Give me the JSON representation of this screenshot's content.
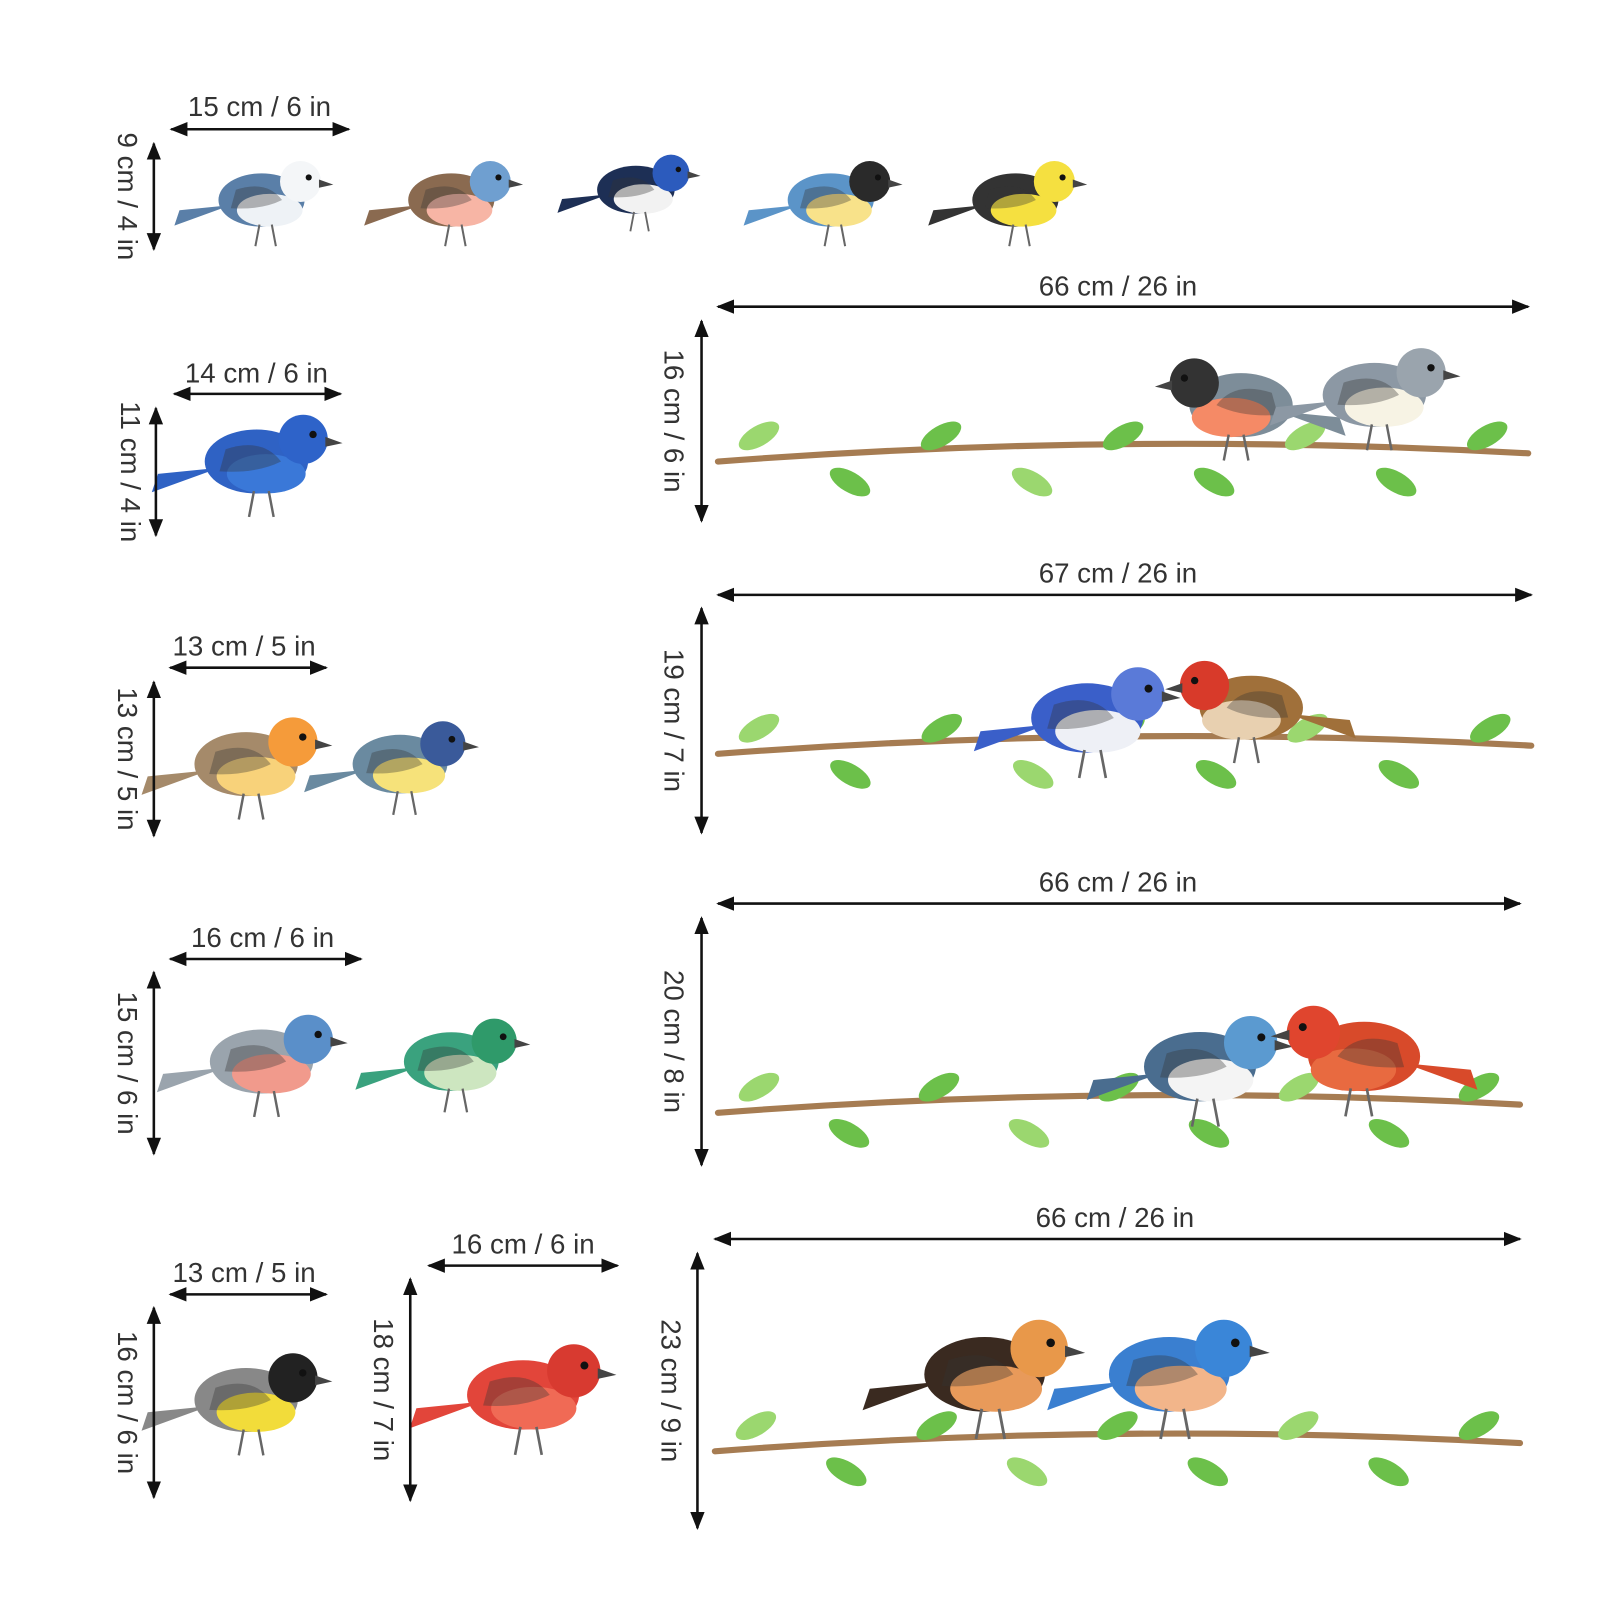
{
  "decals": [
    {
      "width": "15 cm / 6 in",
      "height": "9 cm / 4 in"
    },
    {
      "width": "14 cm / 6 in",
      "height": "11 cm / 4 in"
    },
    {
      "width": "13 cm / 5 in",
      "height": "13 cm / 5 in"
    },
    {
      "width": "16 cm / 6 in",
      "height": "15 cm / 6 in"
    },
    {
      "width": "13 cm / 5 in",
      "height": "16 cm / 6 in"
    },
    {
      "width": "16 cm / 6 in",
      "height": "18 cm / 7 in"
    },
    {
      "width": "66 cm / 26 in",
      "height": "16 cm / 6 in"
    },
    {
      "width": "67 cm / 26 in",
      "height": "19 cm / 7 in"
    },
    {
      "width": "66 cm / 26 in",
      "height": "20 cm / 8 in"
    },
    {
      "width": "66 cm / 26 in",
      "height": "23 cm / 9 in"
    }
  ]
}
